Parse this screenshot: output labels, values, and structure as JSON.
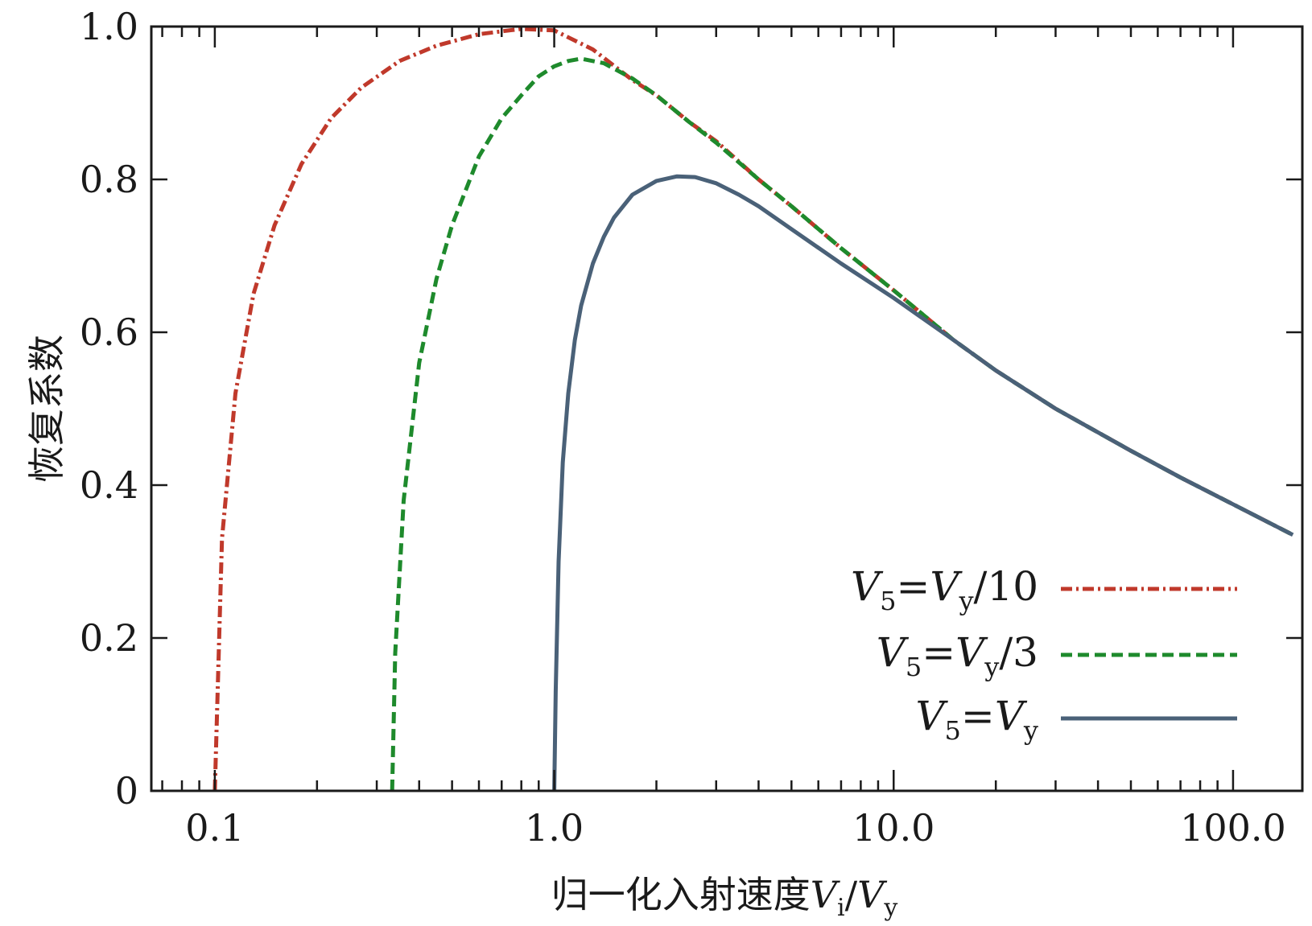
{
  "chart_data": {
    "type": "line",
    "title": "",
    "xlabel": {
      "main": "归一化入射速度",
      "num": "V",
      "num_sub": "i",
      "slash": "/",
      "den": "V",
      "den_sub": "y"
    },
    "ylabel": "恢复系数",
    "x_scale": "log",
    "xlim": [
      0.065,
      160
    ],
    "ylim": [
      0,
      1.0
    ],
    "x_ticks": [
      0.1,
      1.0,
      10.0,
      100.0
    ],
    "x_tick_labels": [
      "0.1",
      "1.0",
      "10.0",
      "100.0"
    ],
    "y_ticks": [
      0,
      0.2,
      0.4,
      0.6,
      0.8,
      1.0
    ],
    "y_tick_labels": [
      "0",
      "0.2",
      "0.4",
      "0.6",
      "0.8",
      "1.0"
    ],
    "grid": false,
    "legend_position": "bottom-right",
    "series": [
      {
        "name": "V5=Vy/10",
        "label": {
          "v": "V",
          "sub": "5",
          "eq": "=",
          "v2": "V",
          "sub2": "y",
          "tail": "/10"
        },
        "color": "#c0392b",
        "style": "dash-dot",
        "x": [
          0.1,
          0.105,
          0.115,
          0.13,
          0.15,
          0.18,
          0.22,
          0.27,
          0.35,
          0.45,
          0.6,
          0.8,
          1.0,
          1.3,
          1.7,
          2.0,
          2.5,
          3.0,
          4.0,
          5.0,
          7.0,
          10.0,
          15.0,
          20.0,
          30.0,
          50.0,
          70.0,
          100.0,
          150.0
        ],
        "y": [
          0.0,
          0.33,
          0.52,
          0.65,
          0.74,
          0.82,
          0.88,
          0.92,
          0.955,
          0.975,
          0.99,
          0.997,
          0.995,
          0.97,
          0.93,
          0.91,
          0.875,
          0.85,
          0.8,
          0.765,
          0.71,
          0.655,
          0.59,
          0.55,
          0.5,
          0.445,
          0.41,
          0.375,
          0.335
        ]
      },
      {
        "name": "V5=Vy/3",
        "label": {
          "v": "V",
          "sub": "5",
          "eq": "=",
          "v2": "V",
          "sub2": "y",
          "tail": "/3"
        },
        "color": "#1e8a2c",
        "style": "dashed",
        "x": [
          0.333,
          0.34,
          0.36,
          0.4,
          0.45,
          0.5,
          0.6,
          0.7,
          0.8,
          0.9,
          1.0,
          1.1,
          1.2,
          1.4,
          1.7,
          2.0,
          2.5,
          3.0,
          4.0,
          5.0,
          7.0,
          10.0,
          15.0,
          20.0,
          30.0,
          50.0,
          70.0,
          100.0,
          150.0
        ],
        "y": [
          0.0,
          0.18,
          0.38,
          0.56,
          0.67,
          0.74,
          0.83,
          0.88,
          0.91,
          0.935,
          0.948,
          0.955,
          0.958,
          0.952,
          0.932,
          0.91,
          0.875,
          0.848,
          0.8,
          0.765,
          0.71,
          0.655,
          0.59,
          0.55,
          0.5,
          0.445,
          0.41,
          0.375,
          0.335
        ]
      },
      {
        "name": "V5=Vy",
        "label": {
          "v": "V",
          "sub": "5",
          "eq": "=",
          "v2": "V",
          "sub2": "y",
          "tail": ""
        },
        "color": "#4a6178",
        "style": "solid",
        "x": [
          1.0,
          1.01,
          1.03,
          1.06,
          1.1,
          1.15,
          1.2,
          1.3,
          1.4,
          1.5,
          1.7,
          2.0,
          2.3,
          2.6,
          3.0,
          3.5,
          4.0,
          5.0,
          7.0,
          10.0,
          15.0,
          20.0,
          30.0,
          50.0,
          70.0,
          100.0,
          150.0
        ],
        "y": [
          0.0,
          0.13,
          0.3,
          0.43,
          0.52,
          0.59,
          0.635,
          0.69,
          0.725,
          0.75,
          0.78,
          0.798,
          0.804,
          0.803,
          0.795,
          0.78,
          0.765,
          0.735,
          0.69,
          0.645,
          0.59,
          0.55,
          0.5,
          0.445,
          0.41,
          0.375,
          0.335
        ]
      }
    ]
  }
}
